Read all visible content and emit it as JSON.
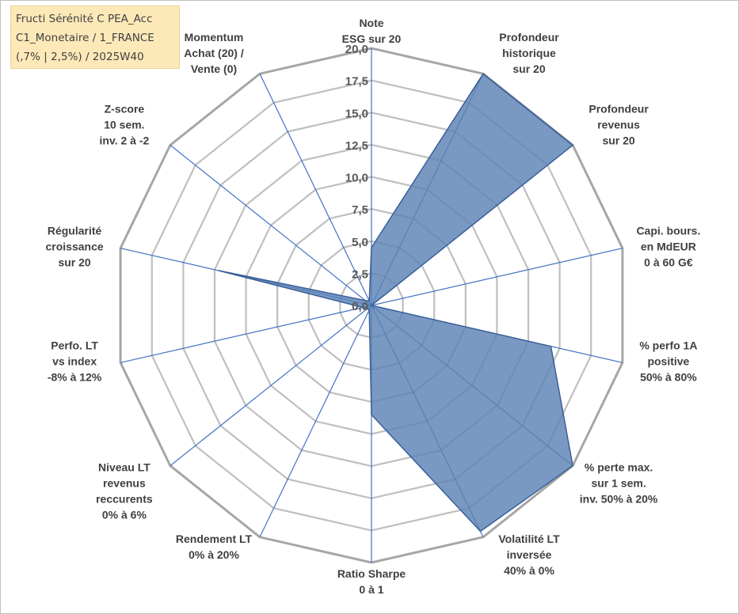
{
  "info_box": {
    "lines": [
      "Fructi Sérénité C PEA_Acc",
      "C1_Monetaire / 1_FRANCE",
      "(,7% | 2,5%) / 2025W40"
    ]
  },
  "colors": {
    "area_fill": "#5b83b4",
    "area_stroke": "#3a5f9a",
    "spoke": "#4472c4",
    "ring": "#bfbfbf",
    "outer_ring": "#a6a6a6",
    "label_text": "#404040",
    "info_box_bg": "#fde9b8"
  },
  "chart_data": {
    "type": "radar",
    "rmin": 0,
    "rmax": 20,
    "ticks": [
      "0,0",
      "2,5",
      "5,0",
      "7,5",
      "10,0",
      "12,5",
      "15,0",
      "17,5",
      "20,0"
    ],
    "grid": true,
    "axes": [
      {
        "lines": [
          "Note",
          "ESG sur 20"
        ],
        "value": 4.5
      },
      {
        "lines": [
          "Profondeur",
          "historique",
          "sur 20"
        ],
        "value": 20
      },
      {
        "lines": [
          "Profondeur",
          "revenus",
          "sur 20"
        ],
        "value": 20
      },
      {
        "lines": [
          "Capi. bours.",
          "en MdEUR",
          "0 à 60 G€"
        ],
        "value": 0
      },
      {
        "lines": [
          "% perfo 1A",
          "positive",
          "50% à 80%"
        ],
        "value": 14.3
      },
      {
        "lines": [
          "% perte max.",
          "sur 1 sem.",
          "inv. 50% à 20%"
        ],
        "value": 20
      },
      {
        "lines": [
          "Volatilité LT",
          "inversée",
          "40% à 0%"
        ],
        "value": 19.5
      },
      {
        "lines": [
          "Ratio Sharpe",
          "0 à 1"
        ],
        "value": 8.5
      },
      {
        "lines": [
          "Rendement LT",
          "0% à 20%"
        ],
        "value": 0.4
      },
      {
        "lines": [
          "Niveau LT",
          "revenus",
          "reccurents",
          "0% à 6%"
        ],
        "value": 0.4
      },
      {
        "lines": [
          "Perfo. LT",
          "vs index",
          "-8% à 12%"
        ],
        "value": 0.7
      },
      {
        "lines": [
          "Régularité",
          "croissance",
          "sur 20"
        ],
        "value": 12.2
      },
      {
        "lines": [
          "Z-score",
          "10 sem.",
          "inv. 2 à -2"
        ],
        "value": 0.6
      },
      {
        "lines": [
          "Momentum",
          "Achat (20) /",
          "Vente (0)"
        ],
        "value": 0.4
      }
    ]
  }
}
